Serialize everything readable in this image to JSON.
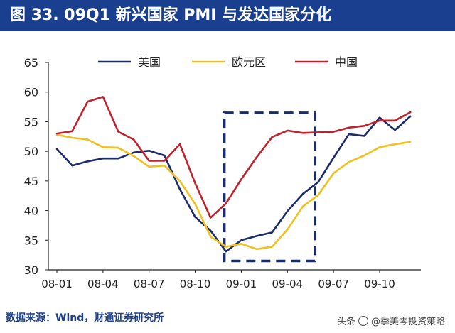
{
  "header": {
    "title": "图 33. 09Q1 新兴国家 PMI 与发达国家分化"
  },
  "footer": {
    "source": "数据来源：Wind，财通证券研究所",
    "watermark_prefix": "头条",
    "watermark_text": "@季美零投资策略"
  },
  "chart_data": {
    "type": "line",
    "title": "",
    "xlabel": "",
    "ylabel": "",
    "ylim": [
      30,
      65
    ],
    "yticks": [
      30,
      35,
      40,
      45,
      50,
      55,
      60,
      65
    ],
    "xlim": [
      0,
      21
    ],
    "xticks": [
      {
        "i": 0,
        "label": "08-01"
      },
      {
        "i": 3,
        "label": "08-04"
      },
      {
        "i": 6,
        "label": "08-07"
      },
      {
        "i": 9,
        "label": "08-10"
      },
      {
        "i": 12,
        "label": "09-01"
      },
      {
        "i": 15,
        "label": "09-04"
      },
      {
        "i": 18,
        "label": "09-07"
      },
      {
        "i": 21,
        "label": "09-10"
      }
    ],
    "months": [
      "08-01",
      "08-02",
      "08-03",
      "08-04",
      "08-05",
      "08-06",
      "08-07",
      "08-08",
      "08-09",
      "08-10",
      "08-11",
      "08-12",
      "09-01",
      "09-02",
      "09-03",
      "09-04",
      "09-05",
      "09-06",
      "09-07",
      "09-08",
      "09-09",
      "09-10",
      "09-11",
      "09-12"
    ],
    "grid": false,
    "legend_position": "top",
    "series": [
      {
        "name": "美国",
        "color": "#1b2c6b",
        "values": [
          50.4,
          47.6,
          48.3,
          48.8,
          48.8,
          49.8,
          50.1,
          49.3,
          43.6,
          38.9,
          36.6,
          33.1,
          35.0,
          35.7,
          36.3,
          39.9,
          42.8,
          44.8,
          48.9,
          52.9,
          52.6,
          55.7,
          53.6,
          55.9
        ]
      },
      {
        "name": "欧元区",
        "color": "#f2c01e",
        "values": [
          52.8,
          52.3,
          52.0,
          50.7,
          50.6,
          49.2,
          47.4,
          47.6,
          45.0,
          41.1,
          35.6,
          33.9,
          34.4,
          33.5,
          33.9,
          36.8,
          40.7,
          42.6,
          46.3,
          48.2,
          49.3,
          50.7,
          51.2,
          51.6
        ]
      },
      {
        "name": "中国",
        "color": "#c0212b",
        "values": [
          53.0,
          53.4,
          58.4,
          59.2,
          53.3,
          52.0,
          48.4,
          48.4,
          51.2,
          44.6,
          38.8,
          41.2,
          45.3,
          49.0,
          52.4,
          53.5,
          53.1,
          53.2,
          53.3,
          54.0,
          54.3,
          55.2,
          55.2,
          56.6
        ]
      }
    ]
  }
}
